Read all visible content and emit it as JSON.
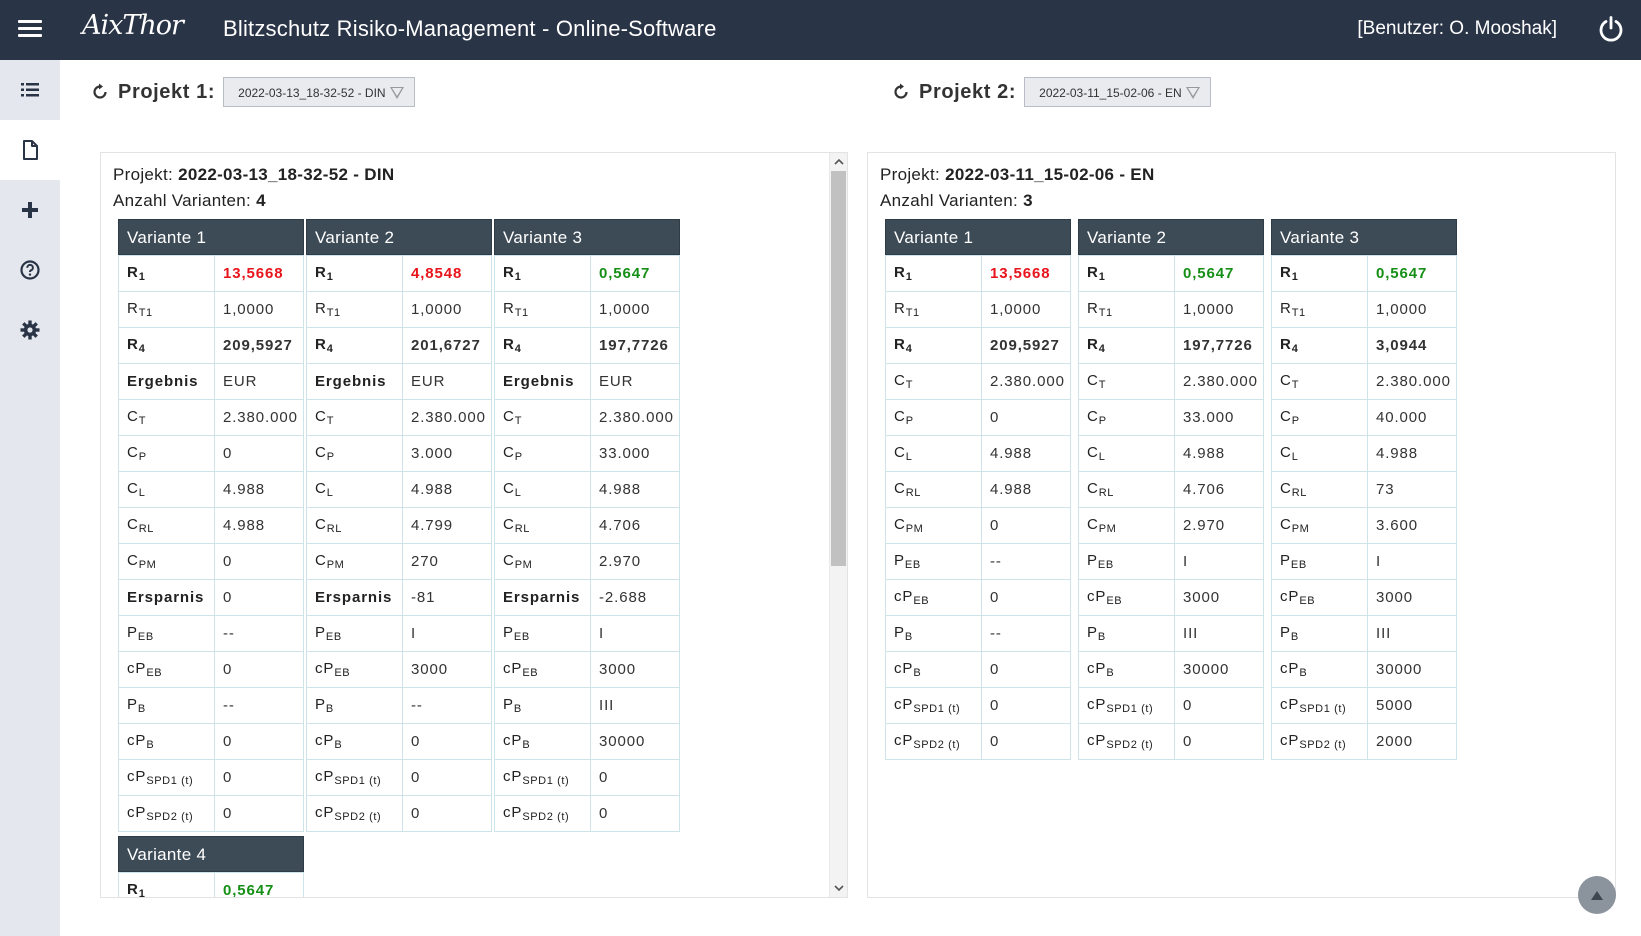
{
  "header": {
    "logo_text": "AixThor",
    "title": "Blitzschutz Risiko-Management - Online-Software",
    "user_label": "[Benutzer: O. Mooshak]"
  },
  "sidebar": {
    "items": [
      {
        "name": "list",
        "icon": "list-icon"
      },
      {
        "name": "document",
        "icon": "document-icon"
      },
      {
        "name": "add",
        "icon": "plus-icon"
      },
      {
        "name": "help",
        "icon": "help-icon"
      },
      {
        "name": "settings",
        "icon": "gear-icon"
      }
    ],
    "active": "document"
  },
  "project1": {
    "label": "Projekt 1:",
    "selected": "2022-03-13_18-32-52 - DIN",
    "info_label": "Projekt:",
    "name": "2022-03-13_18-32-52 - DIN",
    "count_label": "Anzahl Varianten:",
    "count": "4",
    "variants": [
      {
        "title": "Variante 1",
        "rows": [
          {
            "k": "R",
            "s": "1",
            "kb": true,
            "v": "13,5668",
            "style": "red"
          },
          {
            "k": "R",
            "s": "T1",
            "v": "1,0000"
          },
          {
            "k": "R",
            "s": "4",
            "kb": true,
            "v": "209,5927",
            "style": "bold"
          },
          {
            "k": "Ergebnis",
            "s": "",
            "kb": true,
            "v": "EUR"
          },
          {
            "k": "C",
            "s": "T",
            "v": "2.380.000"
          },
          {
            "k": "C",
            "s": "P",
            "v": "0"
          },
          {
            "k": "C",
            "s": "L",
            "v": "4.988"
          },
          {
            "k": "C",
            "s": "RL",
            "v": "4.988"
          },
          {
            "k": "C",
            "s": "PM",
            "v": "0"
          },
          {
            "k": "Ersparnis",
            "s": "",
            "kb": true,
            "v": "0"
          },
          {
            "k": "P",
            "s": "EB",
            "v": "--"
          },
          {
            "k": "cP",
            "s": "EB",
            "v": "0"
          },
          {
            "k": "P",
            "s": "B",
            "v": "--"
          },
          {
            "k": "cP",
            "s": "B",
            "v": "0"
          },
          {
            "k": "cP",
            "s": "SPD1 (t)",
            "v": "0"
          },
          {
            "k": "cP",
            "s": "SPD2 (t)",
            "v": "0"
          }
        ]
      },
      {
        "title": "Variante 2",
        "rows": [
          {
            "k": "R",
            "s": "1",
            "kb": true,
            "v": "4,8548",
            "style": "red"
          },
          {
            "k": "R",
            "s": "T1",
            "v": "1,0000"
          },
          {
            "k": "R",
            "s": "4",
            "kb": true,
            "v": "201,6727",
            "style": "bold"
          },
          {
            "k": "Ergebnis",
            "s": "",
            "kb": true,
            "v": "EUR"
          },
          {
            "k": "C",
            "s": "T",
            "v": "2.380.000"
          },
          {
            "k": "C",
            "s": "P",
            "v": "3.000"
          },
          {
            "k": "C",
            "s": "L",
            "v": "4.988"
          },
          {
            "k": "C",
            "s": "RL",
            "v": "4.799"
          },
          {
            "k": "C",
            "s": "PM",
            "v": "270"
          },
          {
            "k": "Ersparnis",
            "s": "",
            "kb": true,
            "v": "-81"
          },
          {
            "k": "P",
            "s": "EB",
            "v": "I"
          },
          {
            "k": "cP",
            "s": "EB",
            "v": "3000"
          },
          {
            "k": "P",
            "s": "B",
            "v": "--"
          },
          {
            "k": "cP",
            "s": "B",
            "v": "0"
          },
          {
            "k": "cP",
            "s": "SPD1 (t)",
            "v": "0"
          },
          {
            "k": "cP",
            "s": "SPD2 (t)",
            "v": "0"
          }
        ]
      },
      {
        "title": "Variante 3",
        "rows": [
          {
            "k": "R",
            "s": "1",
            "kb": true,
            "v": "0,5647",
            "style": "green"
          },
          {
            "k": "R",
            "s": "T1",
            "v": "1,0000"
          },
          {
            "k": "R",
            "s": "4",
            "kb": true,
            "v": "197,7726",
            "style": "bold"
          },
          {
            "k": "Ergebnis",
            "s": "",
            "kb": true,
            "v": "EUR"
          },
          {
            "k": "C",
            "s": "T",
            "v": "2.380.000"
          },
          {
            "k": "C",
            "s": "P",
            "v": "33.000"
          },
          {
            "k": "C",
            "s": "L",
            "v": "4.988"
          },
          {
            "k": "C",
            "s": "RL",
            "v": "4.706"
          },
          {
            "k": "C",
            "s": "PM",
            "v": "2.970"
          },
          {
            "k": "Ersparnis",
            "s": "",
            "kb": true,
            "v": "-2.688"
          },
          {
            "k": "P",
            "s": "EB",
            "v": "I"
          },
          {
            "k": "cP",
            "s": "EB",
            "v": "3000"
          },
          {
            "k": "P",
            "s": "B",
            "v": "III"
          },
          {
            "k": "cP",
            "s": "B",
            "v": "30000"
          },
          {
            "k": "cP",
            "s": "SPD1 (t)",
            "v": "0"
          },
          {
            "k": "cP",
            "s": "SPD2 (t)",
            "v": "0"
          }
        ]
      },
      {
        "title": "Variante 4",
        "rows": [
          {
            "k": "R",
            "s": "1",
            "kb": true,
            "v": "0,5647",
            "style": "green"
          }
        ]
      }
    ]
  },
  "project2": {
    "label": "Projekt 2:",
    "selected": "2022-03-11_15-02-06 - EN",
    "info_label": "Projekt:",
    "name": "2022-03-11_15-02-06 - EN",
    "count_label": "Anzahl Varianten:",
    "count": "3",
    "variants": [
      {
        "title": "Variante 1",
        "rows": [
          {
            "k": "R",
            "s": "1",
            "kb": true,
            "v": "13,5668",
            "style": "red"
          },
          {
            "k": "R",
            "s": "T1",
            "v": "1,0000"
          },
          {
            "k": "R",
            "s": "4",
            "kb": true,
            "v": "209,5927",
            "style": "bold"
          },
          {
            "k": "C",
            "s": "T",
            "v": "2.380.000"
          },
          {
            "k": "C",
            "s": "P",
            "v": "0"
          },
          {
            "k": "C",
            "s": "L",
            "v": "4.988"
          },
          {
            "k": "C",
            "s": "RL",
            "v": "4.988"
          },
          {
            "k": "C",
            "s": "PM",
            "v": "0"
          },
          {
            "k": "P",
            "s": "EB",
            "v": "--"
          },
          {
            "k": "cP",
            "s": "EB",
            "v": "0"
          },
          {
            "k": "P",
            "s": "B",
            "v": "--"
          },
          {
            "k": "cP",
            "s": "B",
            "v": "0"
          },
          {
            "k": "cP",
            "s": "SPD1 (t)",
            "v": "0"
          },
          {
            "k": "cP",
            "s": "SPD2 (t)",
            "v": "0"
          }
        ]
      },
      {
        "title": "Variante 2",
        "rows": [
          {
            "k": "R",
            "s": "1",
            "kb": true,
            "v": "0,5647",
            "style": "green"
          },
          {
            "k": "R",
            "s": "T1",
            "v": "1,0000"
          },
          {
            "k": "R",
            "s": "4",
            "kb": true,
            "v": "197,7726",
            "style": "bold"
          },
          {
            "k": "C",
            "s": "T",
            "v": "2.380.000"
          },
          {
            "k": "C",
            "s": "P",
            "v": "33.000"
          },
          {
            "k": "C",
            "s": "L",
            "v": "4.988"
          },
          {
            "k": "C",
            "s": "RL",
            "v": "4.706"
          },
          {
            "k": "C",
            "s": "PM",
            "v": "2.970"
          },
          {
            "k": "P",
            "s": "EB",
            "v": "I"
          },
          {
            "k": "cP",
            "s": "EB",
            "v": "3000"
          },
          {
            "k": "P",
            "s": "B",
            "v": "III"
          },
          {
            "k": "cP",
            "s": "B",
            "v": "30000"
          },
          {
            "k": "cP",
            "s": "SPD1 (t)",
            "v": "0"
          },
          {
            "k": "cP",
            "s": "SPD2 (t)",
            "v": "0"
          }
        ]
      },
      {
        "title": "Variante 3",
        "rows": [
          {
            "k": "R",
            "s": "1",
            "kb": true,
            "v": "0,5647",
            "style": "green"
          },
          {
            "k": "R",
            "s": "T1",
            "v": "1,0000"
          },
          {
            "k": "R",
            "s": "4",
            "kb": true,
            "v": "3,0944",
            "style": "bold"
          },
          {
            "k": "C",
            "s": "T",
            "v": "2.380.000"
          },
          {
            "k": "C",
            "s": "P",
            "v": "40.000"
          },
          {
            "k": "C",
            "s": "L",
            "v": "4.988"
          },
          {
            "k": "C",
            "s": "RL",
            "v": "73"
          },
          {
            "k": "C",
            "s": "PM",
            "v": "3.600"
          },
          {
            "k": "P",
            "s": "EB",
            "v": "I"
          },
          {
            "k": "cP",
            "s": "EB",
            "v": "3000"
          },
          {
            "k": "P",
            "s": "B",
            "v": "III"
          },
          {
            "k": "cP",
            "s": "B",
            "v": "30000"
          },
          {
            "k": "cP",
            "s": "SPD1 (t)",
            "v": "5000"
          },
          {
            "k": "cP",
            "s": "SPD2 (t)",
            "v": "2000"
          }
        ]
      }
    ]
  },
  "colors": {
    "topbar": "#2a3447",
    "variant_header": "#3d4b57",
    "red": "#e8141b",
    "green": "#168f16",
    "sidebar": "#e4e8ee"
  }
}
